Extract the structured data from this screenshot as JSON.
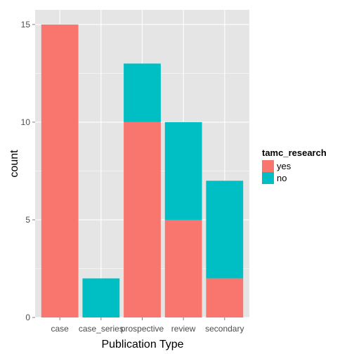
{
  "chart_data": {
    "type": "bar",
    "stacked": true,
    "title": "",
    "xlabel": "Publication Type",
    "ylabel": "count",
    "ylim": [
      0,
      15.75
    ],
    "yticks": [
      0,
      5,
      10,
      15
    ],
    "categories": [
      "case",
      "case_series",
      "prospective",
      "review",
      "secondary"
    ],
    "series": [
      {
        "name": "yes",
        "color": "#F8766D",
        "values": [
          15,
          0,
          10,
          5,
          2
        ]
      },
      {
        "name": "no",
        "color": "#00BFC4",
        "values": [
          0,
          2,
          3,
          5,
          5
        ]
      }
    ],
    "legend": {
      "title": "tamc_research",
      "placement": "right"
    },
    "grid": true,
    "panel_background": "#E5E5E5",
    "grid_color": "#FFFFFF"
  }
}
